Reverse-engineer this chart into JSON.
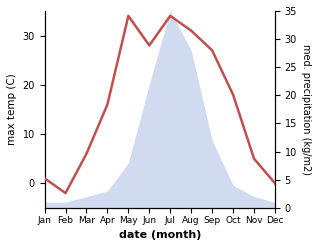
{
  "months": [
    1,
    2,
    3,
    4,
    5,
    6,
    7,
    8,
    9,
    10,
    11,
    12
  ],
  "month_labels": [
    "Jan",
    "Feb",
    "Mar",
    "Apr",
    "May",
    "Jun",
    "Jul",
    "Aug",
    "Sep",
    "Oct",
    "Nov",
    "Dec"
  ],
  "temperature": [
    1,
    -2,
    6,
    16,
    34,
    28,
    34,
    31,
    27,
    18,
    5,
    0
  ],
  "precipitation": [
    1,
    1,
    2,
    3,
    8,
    22,
    35,
    28,
    12,
    4,
    2,
    1
  ],
  "temp_color": "#c0504d",
  "precip_fill_color": "#b8c9e8",
  "precip_fill_alpha": 0.65,
  "left_ylabel": "max temp (C)",
  "right_ylabel": "med. precipitation (kg/m2)",
  "xlabel": "date (month)",
  "left_ylim": [
    -5,
    35
  ],
  "right_ylim": [
    0,
    35
  ],
  "left_yticks": [
    0,
    10,
    20,
    30
  ],
  "right_yticks": [
    0,
    5,
    10,
    15,
    20,
    25,
    30,
    35
  ],
  "line_width": 1.8,
  "bg_color": "#ffffff"
}
